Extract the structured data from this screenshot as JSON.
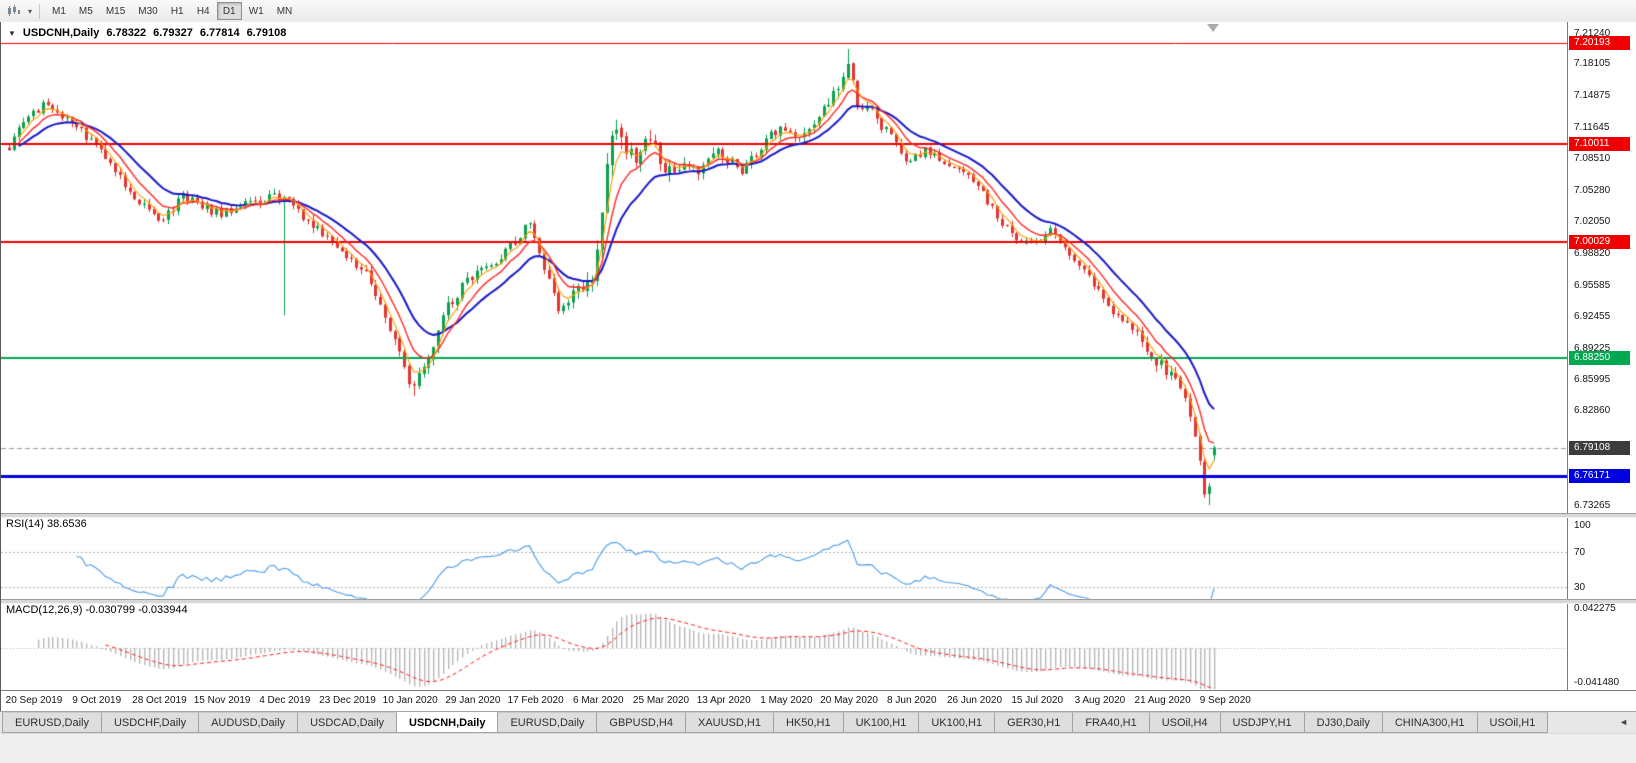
{
  "toolbar": {
    "timeframes": [
      {
        "label": "M1",
        "active": false
      },
      {
        "label": "M5",
        "active": false
      },
      {
        "label": "M15",
        "active": false
      },
      {
        "label": "M30",
        "active": false
      },
      {
        "label": "H1",
        "active": false
      },
      {
        "label": "H4",
        "active": false
      },
      {
        "label": "D1",
        "active": true
      },
      {
        "label": "W1",
        "active": false
      },
      {
        "label": "MN",
        "active": false
      }
    ]
  },
  "chart_header": {
    "arrow": "▼",
    "title": "USDCNH,Daily",
    "open": "6.78322",
    "high": "6.79327",
    "low": "6.77814",
    "close": "6.79108"
  },
  "price_scale": {
    "ticks": [
      {
        "label": "7.21240",
        "value": 7.2124
      },
      {
        "label": "7.18105",
        "value": 7.18105
      },
      {
        "label": "7.14875",
        "value": 7.14875
      },
      {
        "label": "7.11645",
        "value": 7.11645
      },
      {
        "label": "7.08510",
        "value": 7.0851
      },
      {
        "label": "7.05280",
        "value": 7.0528
      },
      {
        "label": "7.02050",
        "value": 7.0205
      },
      {
        "label": "6.98820",
        "value": 6.9882
      },
      {
        "label": "6.95585",
        "value": 6.95585
      },
      {
        "label": "6.92455",
        "value": 6.92455
      },
      {
        "label": "6.89225",
        "value": 6.89225
      },
      {
        "label": "6.85995",
        "value": 6.85995
      },
      {
        "label": "6.82860",
        "value": 6.8286
      },
      {
        "label": "6.73265",
        "value": 6.73265
      }
    ],
    "badges": [
      {
        "label": "7.20193",
        "value": 7.20193,
        "color": "#f00000"
      },
      {
        "label": "7.10011",
        "value": 7.10011,
        "color": "#f00000"
      },
      {
        "label": "7.00029",
        "value": 7.00029,
        "color": "#f00000"
      },
      {
        "label": "6.88250",
        "value": 6.8825,
        "color": "#00a850"
      },
      {
        "label": "6.79108",
        "value": 6.79108,
        "color": "#3c3c3c"
      },
      {
        "label": "6.76171",
        "value": 6.76171,
        "color": "#0000e0"
      }
    ]
  },
  "indicators": {
    "rsi": {
      "label": "RSI(14) 38.6536",
      "period": 14,
      "current": 38.6536,
      "color": "#4d9fe8",
      "scale_labels": [
        {
          "label": "100",
          "value": 100
        },
        {
          "label": "70",
          "value": 70
        },
        {
          "label": "30",
          "value": 30
        }
      ]
    },
    "macd": {
      "label": "MACD(12,26,9) -0.030799 -0.033944",
      "macd_current": -0.030799,
      "signal_current": -0.033944,
      "scale_top": "0.042275",
      "scale_bottom": "-0.041480",
      "histogram_color": "#b8b8b8",
      "signal_color": "#ff1e1e"
    }
  },
  "date_axis": [
    "20 Sep 2019",
    "9 Oct 2019",
    "28 Oct 2019",
    "15 Nov 2019",
    "4 Dec 2019",
    "23 Dec 2019",
    "10 Jan 2020",
    "29 Jan 2020",
    "17 Feb 2020",
    "6 Mar 2020",
    "25 Mar 2020",
    "13 Apr 2020",
    "1 May 2020",
    "20 May 2020",
    "8 Jun 2020",
    "26 Jun 2020",
    "15 Jul 2020",
    "3 Aug 2020",
    "21 Aug 2020",
    "9 Sep 2020"
  ],
  "tab_bar": {
    "scroll_left": "◄",
    "tabs": [
      {
        "label": "EURUSD,Daily",
        "active": false
      },
      {
        "label": "USDCHF,Daily",
        "active": false
      },
      {
        "label": "AUDUSD,Daily",
        "active": false
      },
      {
        "label": "USDCAD,Daily",
        "active": false
      },
      {
        "label": "USDCNH,Daily",
        "active": true
      },
      {
        "label": "EURUSD,Daily",
        "active": false
      },
      {
        "label": "GBPUSD,H4",
        "active": false
      },
      {
        "label": "XAUUSD,H1",
        "active": false
      },
      {
        "label": "HK50,H1",
        "active": false
      },
      {
        "label": "UK100,H1",
        "active": false
      },
      {
        "label": "UK100,H1",
        "active": false
      },
      {
        "label": "GER30,H1",
        "active": false
      },
      {
        "label": "FRA40,H1",
        "active": false
      },
      {
        "label": "USOil,H4",
        "active": false
      },
      {
        "label": "USDJPY,H1",
        "active": false
      },
      {
        "label": "DJ30,Daily",
        "active": false
      },
      {
        "label": "CHINA300,H1",
        "active": false
      },
      {
        "label": "USOil,H1",
        "active": false
      }
    ]
  },
  "chart_data": {
    "type": "candlestick",
    "symbol": "USDCNH",
    "timeframe": "Daily",
    "bars": 251,
    "bars_per_date_label": 13,
    "price_range": [
      6.7236,
      7.2236
    ],
    "current_price": 6.79108,
    "last_bar": {
      "open": 6.78322,
      "high": 6.79327,
      "low": 6.77814,
      "close": 6.79108
    },
    "up_color": "#0ca14e",
    "down_color": "#e23434",
    "levels": [
      {
        "value": 7.20193,
        "color": "#f00000",
        "width": 1
      },
      {
        "value": 7.10011,
        "color": "#f00000",
        "width": 2
      },
      {
        "value": 7.00029,
        "color": "#f00000",
        "width": 2
      },
      {
        "value": 6.8825,
        "color": "#00a850",
        "width": 2
      },
      {
        "value": 6.76171,
        "color": "#0000e0",
        "width": 3
      }
    ],
    "moving_averages": [
      {
        "name": "slow",
        "period": 16,
        "color": "#1a1ac8",
        "width": 2
      },
      {
        "name": "medium",
        "period": 8,
        "color": "#ff2a2a",
        "width": 1.4
      },
      {
        "name": "fast",
        "period": 4,
        "color": "#ffa000",
        "width": 1.1
      }
    ],
    "price_keypoints": [
      [
        0,
        7.096
      ],
      [
        3,
        7.121
      ],
      [
        8,
        7.143
      ],
      [
        12,
        7.124
      ],
      [
        18,
        7.099
      ],
      [
        24,
        7.06
      ],
      [
        31,
        7.018
      ],
      [
        36,
        7.046
      ],
      [
        44,
        7.028
      ],
      [
        49,
        7.039
      ],
      [
        57,
        7.048
      ],
      [
        62,
        7.02
      ],
      [
        70,
        6.988
      ],
      [
        75,
        6.96
      ],
      [
        80,
        6.9
      ],
      [
        84,
        6.849
      ],
      [
        87,
        6.882
      ],
      [
        91,
        6.936
      ],
      [
        95,
        6.961
      ],
      [
        100,
        6.974
      ],
      [
        105,
        7.001
      ],
      [
        108,
        7.021
      ],
      [
        111,
        6.976
      ],
      [
        114,
        6.932
      ],
      [
        118,
        6.951
      ],
      [
        121,
        6.968
      ],
      [
        123,
        7.032
      ],
      [
        125,
        7.117
      ],
      [
        127,
        7.099
      ],
      [
        130,
        7.089
      ],
      [
        133,
        7.108
      ],
      [
        136,
        7.064
      ],
      [
        140,
        7.084
      ],
      [
        143,
        7.069
      ],
      [
        147,
        7.091
      ],
      [
        152,
        7.074
      ],
      [
        156,
        7.097
      ],
      [
        160,
        7.119
      ],
      [
        164,
        7.104
      ],
      [
        169,
        7.137
      ],
      [
        172,
        7.161
      ],
      [
        174,
        7.186
      ],
      [
        176,
        7.144
      ],
      [
        180,
        7.127
      ],
      [
        182,
        7.113
      ],
      [
        186,
        7.079
      ],
      [
        190,
        7.093
      ],
      [
        195,
        7.078
      ],
      [
        200,
        7.063
      ],
      [
        204,
        7.033
      ],
      [
        208,
        7.007
      ],
      [
        212,
        6.997
      ],
      [
        216,
        7.013
      ],
      [
        221,
        6.978
      ],
      [
        226,
        6.953
      ],
      [
        230,
        6.923
      ],
      [
        234,
        6.907
      ],
      [
        238,
        6.879
      ],
      [
        242,
        6.863
      ],
      [
        244,
        6.846
      ],
      [
        245,
        6.822
      ],
      [
        246,
        6.796
      ],
      [
        247,
        6.774
      ],
      [
        248,
        6.744
      ],
      [
        249,
        6.752
      ],
      [
        250,
        6.791
      ]
    ],
    "volatility_keypoints": [
      [
        0,
        0.0052
      ],
      [
        78,
        0.006
      ],
      [
        84,
        0.0085
      ],
      [
        92,
        0.007
      ],
      [
        100,
        0.0055
      ],
      [
        116,
        0.0065
      ],
      [
        120,
        0.011
      ],
      [
        126,
        0.015
      ],
      [
        134,
        0.011
      ],
      [
        142,
        0.0075
      ],
      [
        150,
        0.0058
      ],
      [
        166,
        0.0065
      ],
      [
        172,
        0.0095
      ],
      [
        176,
        0.0085
      ],
      [
        184,
        0.0065
      ],
      [
        200,
        0.005
      ],
      [
        232,
        0.0055
      ],
      [
        243,
        0.008
      ],
      [
        250,
        0.007
      ]
    ],
    "wick_overrides": [
      [
        57,
        "low",
        6.9255
      ],
      [
        84,
        "low",
        6.8435
      ],
      [
        174,
        "high",
        7.1962
      ],
      [
        249,
        "low",
        6.7326
      ]
    ],
    "seed": 9
  }
}
